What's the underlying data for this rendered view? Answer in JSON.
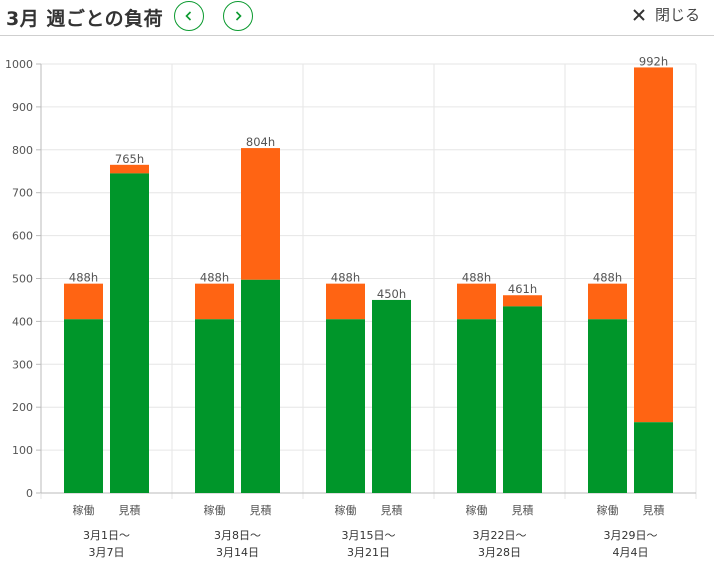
{
  "header": {
    "title": "3月 週ごとの負荷",
    "close_label": "閉じる"
  },
  "colors": {
    "green": "#00962a",
    "orange": "#ff6413",
    "accent": "#0b9a2f"
  },
  "chart_data": {
    "type": "bar",
    "ylim": [
      0,
      1000
    ],
    "yticks": [
      0,
      100,
      200,
      300,
      400,
      500,
      600,
      700,
      800,
      900,
      1000
    ],
    "grid": true,
    "groups": [
      {
        "week_line1": "3月1日〜",
        "week_line2": "3月7日",
        "bars": [
          {
            "category": "稼働",
            "green": 405,
            "total": 488,
            "label": "488h"
          },
          {
            "category": "見積",
            "green": 745,
            "total": 765,
            "label": "765h"
          }
        ]
      },
      {
        "week_line1": "3月8日〜",
        "week_line2": "3月14日",
        "bars": [
          {
            "category": "稼働",
            "green": 405,
            "total": 488,
            "label": "488h"
          },
          {
            "category": "見積",
            "green": 497,
            "total": 804,
            "label": "804h"
          }
        ]
      },
      {
        "week_line1": "3月15日〜",
        "week_line2": "3月21日",
        "bars": [
          {
            "category": "稼働",
            "green": 405,
            "total": 488,
            "label": "488h"
          },
          {
            "category": "見積",
            "green": 450,
            "total": 450,
            "label": "450h"
          }
        ]
      },
      {
        "week_line1": "3月22日〜",
        "week_line2": "3月28日",
        "bars": [
          {
            "category": "稼働",
            "green": 405,
            "total": 488,
            "label": "488h"
          },
          {
            "category": "見積",
            "green": 435,
            "total": 461,
            "label": "461h"
          }
        ]
      },
      {
        "week_line1": "3月29日〜",
        "week_line2": "4月4日",
        "bars": [
          {
            "category": "稼働",
            "green": 405,
            "total": 488,
            "label": "488h"
          },
          {
            "category": "見積",
            "green": 165,
            "total": 992,
            "label": "992h"
          }
        ]
      }
    ]
  }
}
